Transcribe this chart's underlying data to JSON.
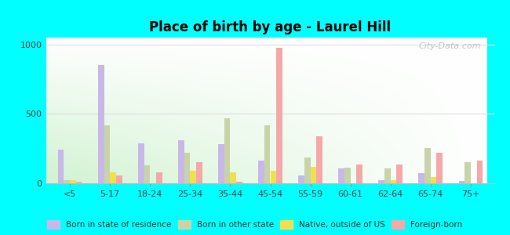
{
  "title": "Place of birth by age - Laurel Hill",
  "categories": [
    "<5",
    "5-17",
    "18-24",
    "25-34",
    "35-44",
    "45-54",
    "55-59",
    "60-61",
    "62-64",
    "65-74",
    "75+"
  ],
  "series": {
    "Born in state of residence": [
      240,
      850,
      290,
      310,
      280,
      165,
      55,
      110,
      20,
      75,
      15
    ],
    "Born in other state": [
      25,
      420,
      130,
      220,
      470,
      420,
      185,
      115,
      105,
      255,
      155
    ],
    "Native, outside of US": [
      20,
      80,
      0,
      90,
      80,
      90,
      120,
      0,
      25,
      45,
      0
    ],
    "Foreign-born": [
      10,
      55,
      80,
      150,
      10,
      975,
      340,
      135,
      135,
      220,
      165
    ]
  },
  "colors": {
    "Born in state of residence": "#c8b8e8",
    "Born in other state": "#c8d4a8",
    "Native, outside of US": "#f0e050",
    "Foreign-born": "#f4a8a8"
  },
  "ylim": [
    0,
    1050
  ],
  "yticks": [
    0,
    500,
    1000
  ],
  "figure_bg": "#00ffff",
  "watermark": "City-Data.com"
}
